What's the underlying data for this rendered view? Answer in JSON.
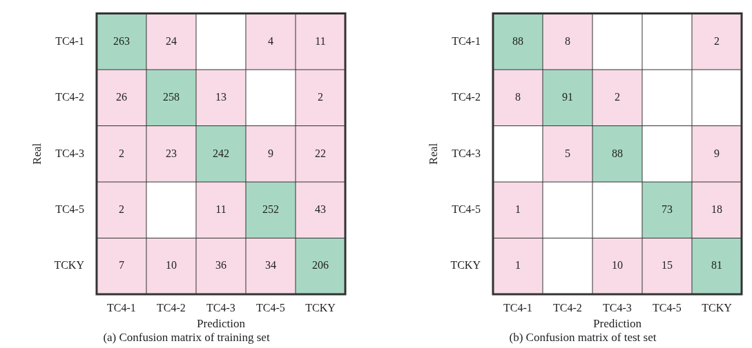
{
  "chart_data": [
    {
      "type": "heatmap",
      "title": "(a) Confusion matrix of training set",
      "xlabel": "Prediction",
      "ylabel": "Real",
      "categories": [
        "TC4-1",
        "TC4-2",
        "TC4-3",
        "TC4-5",
        "TCKY"
      ],
      "y_categories": [
        "TC4-1",
        "TC4-2",
        "TC4-3",
        "TC4-5",
        "TCKY"
      ],
      "colors": [
        "#a8d8c4",
        "#f8dbe6"
      ],
      "data_labels": true,
      "cells": [
        [
          263,
          24,
          null,
          4,
          11
        ],
        [
          26,
          258,
          13,
          null,
          2
        ],
        [
          2,
          23,
          242,
          9,
          22
        ],
        [
          2,
          null,
          11,
          252,
          43
        ],
        [
          7,
          10,
          36,
          34,
          206
        ]
      ]
    },
    {
      "type": "heatmap",
      "title": "(b) Confusion matrix of test set",
      "xlabel": "Prediction",
      "ylabel": "Real",
      "categories": [
        "TC4-1",
        "TC4-2",
        "TC4-3",
        "TC4-5",
        "TCKY"
      ],
      "y_categories": [
        "TC4-1",
        "TC4-2",
        "TC4-3",
        "TC4-5",
        "TCKY"
      ],
      "colors": [
        "#a8d8c4",
        "#f8dbe6"
      ],
      "data_labels": true,
      "cells": [
        [
          88,
          8,
          null,
          null,
          2
        ],
        [
          8,
          91,
          2,
          null,
          null
        ],
        [
          null,
          5,
          88,
          null,
          9
        ],
        [
          1,
          null,
          null,
          73,
          18
        ],
        [
          1,
          null,
          10,
          15,
          81
        ]
      ]
    }
  ]
}
